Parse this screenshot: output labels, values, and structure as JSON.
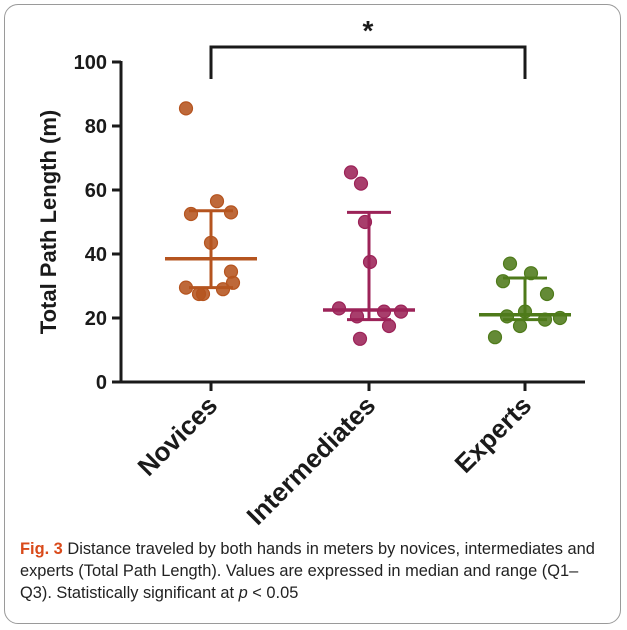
{
  "chart_data": {
    "type": "scatter",
    "ylabel": "Total Path Length (m)",
    "ylim": [
      0,
      100
    ],
    "yticks": [
      "0",
      "20",
      "40",
      "60",
      "80",
      "100"
    ],
    "categories": [
      "Novices",
      "Intermediates",
      "Experts"
    ],
    "significance_marker": "*",
    "significance_between": [
      "Novices",
      "Experts"
    ],
    "series": [
      {
        "category": "Novices",
        "color": "#b5541f",
        "median": 38.5,
        "q1": 29.5,
        "q3": 53.5,
        "points": [
          85.5,
          56.5,
          53,
          52.5,
          43.5,
          34.5,
          31,
          29.5,
          29,
          27.5,
          27.5
        ]
      },
      {
        "category": "Intermediates",
        "color": "#9c2358",
        "median": 22.5,
        "q1": 19.5,
        "q3": 53,
        "points": [
          65.5,
          62,
          50,
          37.5,
          23,
          22,
          22,
          20.5,
          17.5,
          13.5
        ]
      },
      {
        "category": "Experts",
        "color": "#4e7a1a",
        "median": 21,
        "q1": 19.5,
        "q3": 32.5,
        "points": [
          37,
          34,
          31.5,
          27.5,
          22,
          20.5,
          20,
          19.5,
          17.5,
          14
        ]
      }
    ]
  },
  "caption": {
    "lead": "Fig. 3",
    "text_before_p": " Distance traveled by both hands in meters by novices, intermediates and experts (Total Path Length). Values are expressed in median and range (Q1–Q3). Statistically significant at ",
    "p_symbol": "p",
    "text_after_p": " < 0.05"
  }
}
